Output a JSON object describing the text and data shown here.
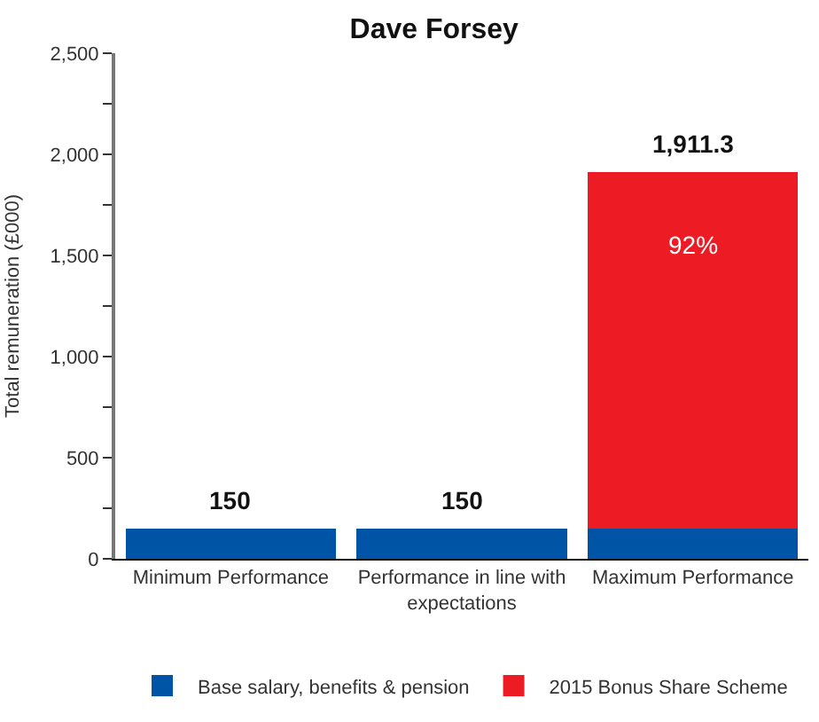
{
  "chart_data": {
    "type": "bar",
    "title": "Dave Forsey",
    "ylabel": "Total remuneration (£000)",
    "categories": [
      "Minimum Performance",
      "Performance in line with expectations",
      "Maximum Performance"
    ],
    "series": [
      {
        "name": "Base salary, benefits & pension",
        "color": "#0054a6",
        "values": [
          150,
          150,
          150
        ]
      },
      {
        "name": "2015 Bonus Share Scheme",
        "color": "#ed1c24",
        "values": [
          null,
          null,
          1761.3
        ]
      }
    ],
    "annotations": [
      "92%"
    ],
    "stacked": true,
    "totals": [
      "150",
      "150",
      "1,911.3"
    ],
    "ylim": [
      0,
      2500
    ],
    "yticks": [
      0,
      {
        "value": 250,
        "label": null
      },
      {
        "value": 500,
        "label": "500"
      },
      {
        "value": 750,
        "label": null
      },
      {
        "value": 1000,
        "label": "1,000"
      },
      {
        "value": 1250,
        "label": null
      },
      {
        "value": 1500,
        "label": "1,500"
      },
      {
        "value": 1750,
        "label": null
      },
      {
        "value": 2000,
        "label": "2,000"
      },
      {
        "value": 2250,
        "label": null
      },
      {
        "value": 2500,
        "label": "2,500"
      }
    ],
    "legend": "bottom"
  }
}
